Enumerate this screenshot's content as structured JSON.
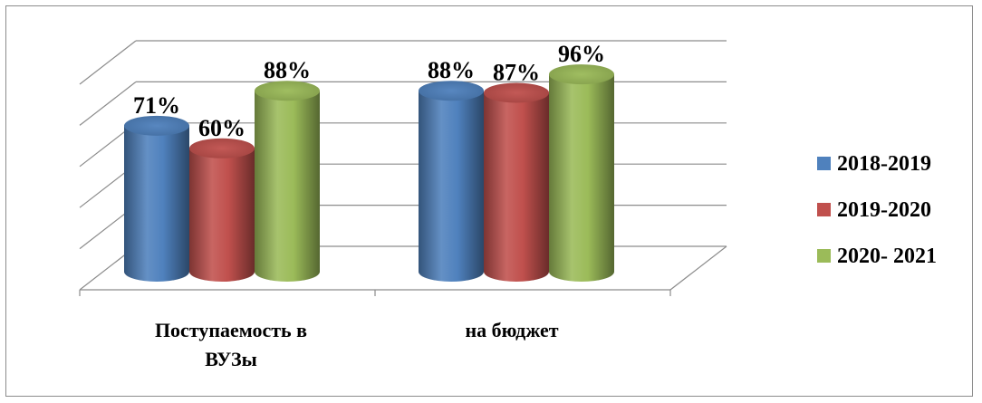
{
  "chart_data": {
    "type": "bar",
    "style": "3d-cylinder",
    "categories": [
      "Поступаемость в ВУЗы",
      "на бюджет"
    ],
    "category_lines": [
      [
        "Поступаемость в",
        "ВУЗы"
      ],
      [
        "на бюджет"
      ]
    ],
    "series": [
      {
        "name": "2018-2019",
        "color": "#4f81bd",
        "values": [
          71,
          88
        ],
        "labels": [
          "71%",
          "88%"
        ]
      },
      {
        "name": "2019-2020",
        "color": "#c0504d",
        "values": [
          60,
          87
        ],
        "labels": [
          "60%",
          "87%"
        ]
      },
      {
        "name": "2020- 2021",
        "color": "#9bbb59",
        "values": [
          88,
          96
        ],
        "labels": [
          "88%",
          "96%"
        ]
      }
    ],
    "ylim": [
      0,
      100
    ],
    "grid": true,
    "legend": "right"
  }
}
